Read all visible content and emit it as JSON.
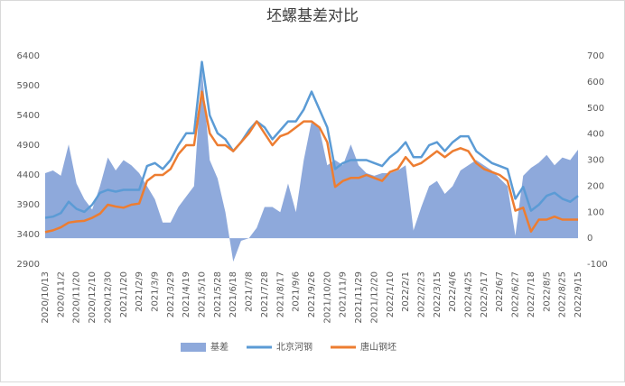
{
  "chart_data": {
    "type": "line",
    "title": "坯螺基差对比",
    "categories": [
      "2020/10/13",
      null,
      "2020/11/2",
      null,
      "2020/11/20",
      null,
      "2020/12/10",
      null,
      "2020/12/30",
      null,
      "2021/1/20",
      null,
      "2021/2/9",
      null,
      "2021/3/9",
      null,
      "2021/3/29",
      null,
      "2021/4/19",
      null,
      "2021/5/10",
      null,
      "2021/5/28",
      null,
      "2021/6/18",
      null,
      "2021/7/8",
      null,
      "2021/7/28",
      null,
      "2021/8/17",
      null,
      "2021/9/6",
      null,
      "2021/9/26",
      null,
      "2021/10/20",
      null,
      "2021/11/9",
      null,
      "2021/11/29",
      null,
      "2021/12/20",
      null,
      "2022/1/10",
      null,
      "2022/2/1",
      null,
      "2022/2/23",
      null,
      "2022/3/15",
      null,
      "2022/4/6",
      null,
      "2022/4/25",
      null,
      "2022/5/17",
      null,
      "2022/6/7",
      null,
      "2022/6/27",
      null,
      "2022/7/18",
      null,
      "2022/8/5",
      null,
      "2022/8/25",
      null,
      "2022/9/15"
    ],
    "series": [
      {
        "name": "基差",
        "kind": "area",
        "axis": "y2",
        "color": "#8ea9db",
        "values": [
          250,
          260,
          240,
          360,
          210,
          150,
          110,
          200,
          310,
          260,
          300,
          280,
          250,
          200,
          150,
          60,
          60,
          120,
          160,
          200,
          650,
          300,
          230,
          100,
          -90,
          -10,
          0,
          40,
          120,
          120,
          100,
          210,
          100,
          300,
          450,
          420,
          280,
          300,
          280,
          360,
          280,
          250,
          240,
          250,
          250,
          260,
          280,
          30,
          120,
          200,
          220,
          170,
          200,
          260,
          280,
          300,
          280,
          260,
          230,
          200,
          10,
          240,
          270,
          290,
          320,
          280,
          310,
          300,
          340
        ]
      },
      {
        "name": "北京河钢",
        "kind": "line",
        "color": "#5b9bd5",
        "values": [
          3680,
          3700,
          3760,
          3950,
          3830,
          3780,
          3900,
          4100,
          4150,
          4120,
          4150,
          4150,
          4150,
          4550,
          4600,
          4500,
          4650,
          4900,
          5100,
          5100,
          6300,
          5400,
          5100,
          5000,
          4800,
          4950,
          5150,
          5300,
          5200,
          5000,
          5150,
          5300,
          5300,
          5500,
          5800,
          5500,
          5200,
          4500,
          4600,
          4650,
          4650,
          4650,
          4600,
          4550,
          4700,
          4800,
          4950,
          4700,
          4700,
          4900,
          4950,
          4800,
          4950,
          5050,
          5050,
          4800,
          4700,
          4600,
          4550,
          4500,
          4000,
          4200,
          3800,
          3900,
          4050,
          4100,
          4000,
          3950,
          4050
        ]
      },
      {
        "name": "唐山钢坯",
        "kind": "line",
        "color": "#ed7d31",
        "values": [
          3440,
          3470,
          3520,
          3600,
          3620,
          3630,
          3680,
          3750,
          3900,
          3870,
          3850,
          3900,
          3920,
          4300,
          4400,
          4400,
          4500,
          4750,
          4900,
          4900,
          5800,
          5100,
          4900,
          4900,
          4800,
          4950,
          5100,
          5300,
          5100,
          4900,
          5050,
          5100,
          5200,
          5300,
          5300,
          5200,
          4950,
          4200,
          4300,
          4350,
          4350,
          4400,
          4350,
          4300,
          4450,
          4500,
          4700,
          4550,
          4600,
          4700,
          4800,
          4700,
          4800,
          4850,
          4800,
          4600,
          4500,
          4450,
          4400,
          4300,
          3800,
          3850,
          3450,
          3650,
          3650,
          3700,
          3650,
          3650,
          3650
        ]
      }
    ],
    "ylim": [
      2900,
      6400
    ],
    "yticks": [
      2900,
      3400,
      3900,
      4400,
      4900,
      5400,
      5900,
      6400
    ],
    "y2lim": [
      -100,
      700
    ],
    "y2ticks": [
      -100,
      0,
      100,
      200,
      300,
      400,
      500,
      600,
      700
    ]
  }
}
